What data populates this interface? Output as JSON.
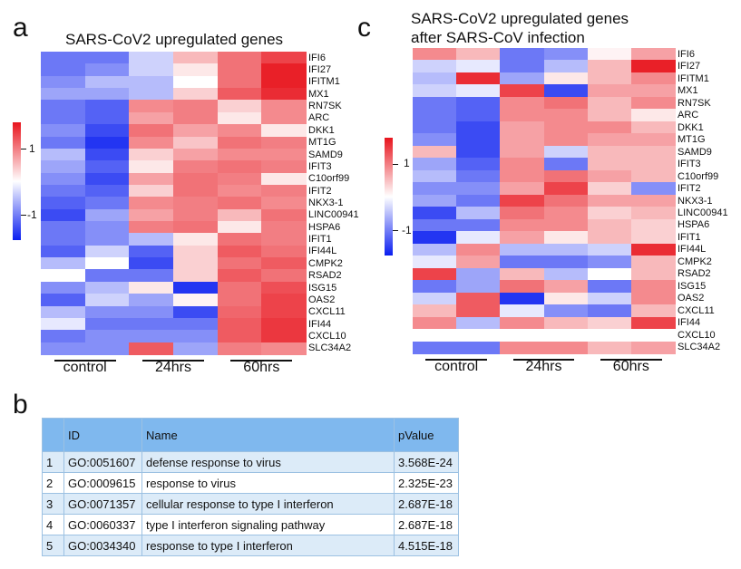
{
  "panels": {
    "a": {
      "letter": "a",
      "title": "SARS-CoV2 upregulated genes",
      "genes": [
        "IFI6",
        "IFI27",
        "IFITM1",
        "MX1",
        "RN7SK",
        "ARC",
        "DKK1",
        "MT1G",
        "SAMD9",
        "IFIT3",
        "C10orf99",
        "IFIT2",
        "NKX3-1",
        "LINC00941",
        "HSPA6",
        "IFIT1",
        "IFI44L",
        "CMPK2",
        "RSAD2",
        "ISG15",
        "OAS2",
        "CXCL11",
        "IFI44",
        "CXCL10",
        "SLC34A2"
      ],
      "groups": [
        "control",
        "24hrs",
        "60hrs"
      ],
      "colorbar_labels": [
        "1",
        "-1"
      ],
      "values": [
        [
          -0.6,
          -0.6,
          -0.2,
          0.3,
          0.6,
          0.8
        ],
        [
          -0.6,
          -0.5,
          -0.2,
          0.1,
          0.6,
          0.95
        ],
        [
          -0.5,
          -0.3,
          -0.3,
          0.0,
          0.6,
          0.95
        ],
        [
          -0.4,
          -0.4,
          -0.3,
          0.2,
          0.7,
          0.9
        ],
        [
          -0.6,
          -0.7,
          0.5,
          0.55,
          0.2,
          0.5
        ],
        [
          -0.6,
          -0.7,
          0.4,
          0.55,
          0.1,
          0.5
        ],
        [
          -0.5,
          -0.8,
          0.6,
          0.4,
          0.5,
          0.1
        ],
        [
          -0.6,
          -0.9,
          0.5,
          0.25,
          0.6,
          0.55
        ],
        [
          -0.3,
          -0.8,
          0.2,
          0.4,
          0.5,
          0.5
        ],
        [
          -0.4,
          -0.7,
          0.1,
          0.55,
          0.6,
          0.55
        ],
        [
          -0.5,
          -0.8,
          0.4,
          0.6,
          0.55,
          0.1
        ],
        [
          -0.6,
          -0.7,
          0.2,
          0.6,
          0.5,
          0.55
        ],
        [
          -0.7,
          -0.6,
          0.5,
          0.55,
          0.6,
          0.5
        ],
        [
          -0.8,
          -0.4,
          0.4,
          0.55,
          0.3,
          0.6
        ],
        [
          -0.6,
          -0.5,
          0.55,
          0.6,
          0.1,
          0.55
        ],
        [
          -0.6,
          -0.5,
          -0.3,
          0.1,
          0.6,
          0.55
        ],
        [
          -0.7,
          -0.2,
          -0.7,
          0.2,
          0.7,
          0.6
        ],
        [
          -0.3,
          0.0,
          -0.8,
          0.2,
          0.6,
          0.7
        ],
        [
          0.0,
          -0.6,
          -0.6,
          0.2,
          0.7,
          0.6
        ],
        [
          -0.5,
          -0.3,
          0.1,
          -0.9,
          0.6,
          0.75
        ],
        [
          -0.7,
          -0.2,
          -0.4,
          0.05,
          0.6,
          0.8
        ],
        [
          -0.3,
          -0.5,
          -0.5,
          -0.8,
          0.65,
          0.8
        ],
        [
          -0.1,
          -0.6,
          -0.6,
          -0.6,
          0.7,
          0.85
        ],
        [
          -0.6,
          -0.5,
          -0.5,
          -0.5,
          0.7,
          0.85
        ],
        [
          -0.5,
          -0.5,
          0.7,
          -0.4,
          0.55,
          0.5
        ]
      ]
    },
    "c": {
      "letter": "c",
      "title_line1": "SARS-CoV2 upregulated genes",
      "title_line2": "after SARS-CoV infection",
      "genes": [
        "IFI6",
        "IFI27",
        "IFITM1",
        "MX1",
        "RN7SK",
        "ARC",
        "DKK1",
        "MT1G",
        "SAMD9",
        "IFIT3",
        "C10orf99",
        "IFIT2",
        "NKX3-1",
        "LINC00941",
        "HSPA6",
        "IFIT1",
        "IFI44L",
        "CMPK2",
        "RSAD2",
        "ISG15",
        "OAS2",
        "CXCL11",
        "IFI44",
        "CXCL10",
        "SLC34A2"
      ],
      "groups": [
        "control",
        "24hrs",
        "60hrs"
      ],
      "colorbar_labels": [
        "1",
        "-1"
      ],
      "values": [
        [
          0.5,
          0.3,
          -0.6,
          -0.5,
          0.05,
          0.4
        ],
        [
          -0.2,
          -0.1,
          -0.6,
          -0.3,
          0.3,
          0.95
        ],
        [
          -0.3,
          0.9,
          -0.4,
          0.1,
          0.3,
          0.5
        ],
        [
          -0.2,
          -0.1,
          0.8,
          -0.8,
          0.4,
          0.4
        ],
        [
          -0.6,
          -0.7,
          0.5,
          0.6,
          0.3,
          0.5
        ],
        [
          -0.6,
          -0.7,
          0.5,
          0.5,
          0.3,
          0.1
        ],
        [
          -0.6,
          -0.8,
          0.4,
          0.5,
          0.5,
          0.3
        ],
        [
          -0.5,
          -0.8,
          0.4,
          0.5,
          0.4,
          0.4
        ],
        [
          0.3,
          -0.8,
          0.4,
          -0.2,
          0.3,
          0.3
        ],
        [
          -0.4,
          -0.7,
          0.5,
          -0.6,
          0.3,
          0.3
        ],
        [
          -0.3,
          -0.6,
          0.5,
          0.6,
          0.4,
          0.3
        ],
        [
          -0.5,
          -0.5,
          0.4,
          0.8,
          0.2,
          -0.5
        ],
        [
          -0.4,
          -0.6,
          0.8,
          0.6,
          0.4,
          0.4
        ],
        [
          -0.8,
          -0.3,
          0.6,
          0.5,
          0.2,
          0.3
        ],
        [
          -0.6,
          -0.6,
          0.5,
          0.5,
          0.3,
          0.2
        ],
        [
          -0.9,
          -0.1,
          0.4,
          0.1,
          0.3,
          0.2
        ],
        [
          -0.3,
          0.5,
          -0.3,
          -0.3,
          -0.2,
          0.9
        ],
        [
          -0.1,
          0.4,
          -0.6,
          -0.6,
          -0.5,
          0.3
        ],
        [
          0.8,
          -0.4,
          0.3,
          -0.3,
          0.0,
          0.3
        ],
        [
          -0.6,
          -0.4,
          0.6,
          0.4,
          -0.6,
          0.5
        ],
        [
          -0.2,
          0.7,
          -0.9,
          0.1,
          -0.2,
          0.5
        ],
        [
          0.3,
          0.7,
          -0.1,
          -0.5,
          -0.6,
          0.3
        ],
        [
          0.5,
          -0.3,
          0.5,
          0.3,
          0.2,
          0.8
        ],
        [
          0.0,
          0.0,
          0.0,
          0.0,
          0.0,
          0.0
        ],
        [
          -0.6,
          -0.6,
          0.5,
          0.5,
          0.3,
          0.4
        ]
      ]
    },
    "b": {
      "letter": "b",
      "headers": [
        "",
        "ID",
        "Name",
        "pValue"
      ],
      "rows": [
        [
          "1",
          "GO:0051607",
          "defense response to virus",
          "3.568E-24"
        ],
        [
          "2",
          "GO:0009615",
          "response to virus",
          "2.325E-23"
        ],
        [
          "3",
          "GO:0071357",
          "cellular response to type I interferon",
          "2.687E-18"
        ],
        [
          "4",
          "GO:0060337",
          "type I interferon signaling pathway",
          "2.687E-18"
        ],
        [
          "5",
          "GO:0034340",
          "response to type I interferon",
          "4.515E-18"
        ]
      ]
    }
  },
  "colors": {
    "high": "#e8141d",
    "mid": "#ffffff",
    "low": "#0a1ef0",
    "table_header": "#7fb8ee",
    "table_stripe": "#dcebf8"
  }
}
